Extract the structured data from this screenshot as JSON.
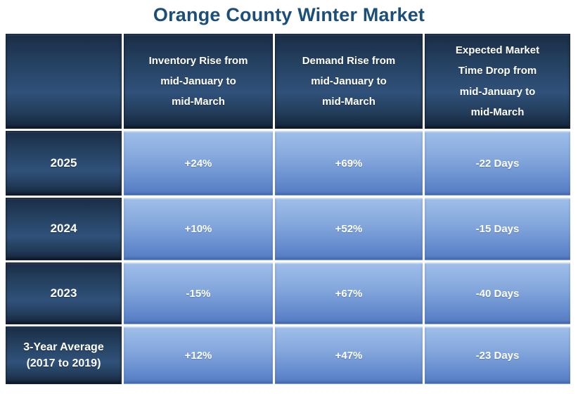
{
  "title": "Orange County Winter Market",
  "theme": {
    "title_color": "#1b4e79",
    "dark_cell_base": "#1a2c45",
    "dark_cell_mid": "#30517a",
    "light_cell_top": "#9fbfea",
    "light_cell_bottom": "#5379c0",
    "cell_text_color": "#ffffff",
    "grid_line_color": "#ffffff"
  },
  "table": {
    "columns": [
      "",
      "Inventory Rise from\nmid-January to\nmid-March",
      "Demand Rise from\nmid-January to\nmid-March",
      "Expected Market\nTime Drop from\nmid-January to\nmid-March"
    ],
    "rows": [
      {
        "label": "2025",
        "values": [
          "+24%",
          "+69%",
          "-22 Days"
        ]
      },
      {
        "label": "2024",
        "values": [
          "+10%",
          "+52%",
          "-15 Days"
        ]
      },
      {
        "label": "2023",
        "values": [
          "-15%",
          "+67%",
          "-40 Days"
        ]
      },
      {
        "label": "3-Year Average\n(2017 to 2019)",
        "values": [
          "+12%",
          "+47%",
          "-23 Days"
        ]
      }
    ]
  },
  "chart_data": {
    "type": "table",
    "title": "Orange County Winter Market",
    "columns": [
      "",
      "Inventory Rise from mid-January to mid-March",
      "Demand Rise from mid-January to mid-March",
      "Expected Market Time Drop from mid-January to mid-March"
    ],
    "rows": [
      [
        "2025",
        "+24%",
        "+69%",
        "-22 Days"
      ],
      [
        "2024",
        "+10%",
        "+52%",
        "-15 Days"
      ],
      [
        "2023",
        "-15%",
        "+67%",
        "-40 Days"
      ],
      [
        "3-Year Average (2017 to 2019)",
        "+12%",
        "+47%",
        "-23 Days"
      ]
    ]
  }
}
